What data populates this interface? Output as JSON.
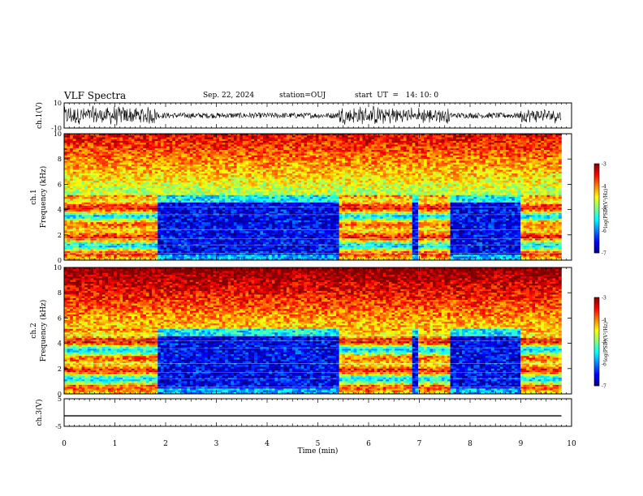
{
  "header": {
    "title": "VLF Spectra",
    "date": "Sep. 22, 2024",
    "station": "station=OUJ",
    "start": "start  UT  =   14: 10: 0"
  },
  "chart_data": [
    {
      "type": "line",
      "name": "ch1-waveform",
      "ylabel": "ch.1(V)",
      "ylim": [
        -10,
        10
      ],
      "yticks": [
        "10",
        "-10"
      ],
      "bursts": [
        {
          "x0": 0.0,
          "x1": 1.85,
          "amp": 8.5
        },
        {
          "x0": 5.4,
          "x1": 6.85,
          "amp": 8.5
        },
        {
          "x0": 6.95,
          "x1": 7.6,
          "amp": 7
        },
        {
          "x0": 9.0,
          "x1": 9.8,
          "amp": 6.5
        }
      ]
    },
    {
      "type": "heatmap",
      "name": "ch1-spectrogram",
      "ylabel_top": "ch.1",
      "ylabel": "Frequency (kHz)",
      "ylim": [
        0,
        10
      ],
      "yticks": [
        "0",
        "2",
        "4",
        "6",
        "8",
        "10"
      ],
      "colorbar": {
        "label": "log(PSD)(V²/Hz)",
        "range": [
          -7,
          -3
        ],
        "ticks": [
          "-3",
          "-4",
          "-5",
          "-6",
          "-7"
        ]
      }
    },
    {
      "type": "heatmap",
      "name": "ch2-spectrogram",
      "ylabel_top": "ch.2",
      "ylabel": "Frequency (kHz)",
      "ylim": [
        0,
        10
      ],
      "yticks": [
        "0",
        "2",
        "4",
        "6",
        "8",
        "10"
      ],
      "colorbar": {
        "label": "log(PSD)(V²/Hz)",
        "range": [
          -7,
          -3
        ],
        "ticks": [
          "-3",
          "-4",
          "-5",
          "-6",
          "-7"
        ]
      }
    },
    {
      "type": "line",
      "name": "ch3-waveform",
      "ylabel": "ch.3(V)",
      "ylim": [
        -5,
        5
      ],
      "yticks": [
        "5",
        "-5"
      ],
      "value": -1.2
    }
  ],
  "time_axis": {
    "xlabel": "Time (min)",
    "xlim": [
      0,
      10
    ],
    "ticks": [
      "0",
      "1",
      "2",
      "3",
      "4",
      "5",
      "6",
      "7",
      "8",
      "9",
      "10"
    ],
    "data_end": 9.8,
    "quiet_intervals": [
      [
        1.85,
        5.4
      ],
      [
        6.85,
        6.95
      ],
      [
        7.6,
        9.0
      ]
    ]
  }
}
